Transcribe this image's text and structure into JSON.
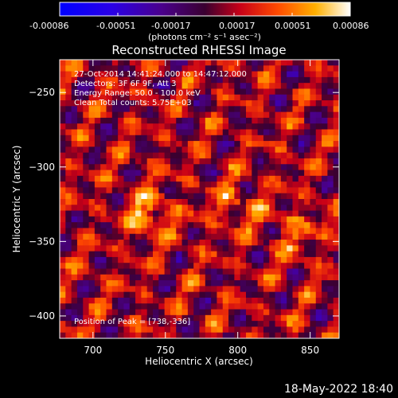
{
  "colorbar": {
    "ticks": [
      "-0.00086",
      "-0.00051",
      "-0.00017",
      "0.00017",
      "0.00051",
      "0.00086"
    ],
    "units": "(photons cm⁻² s⁻¹ asec⁻²)"
  },
  "chart_data": {
    "type": "heatmap",
    "title": "Reconstructed RHESSI Image",
    "xlabel": "Heliocentric X (arcsec)",
    "ylabel": "Heliocentric Y (arcsec)",
    "xlim": [
      677,
      870
    ],
    "ylim": [
      -415,
      -228
    ],
    "xticks": [
      700,
      750,
      800,
      850
    ],
    "yticks": [
      -250,
      -300,
      -350,
      -400
    ],
    "color_range": [
      -0.00086,
      0.00086
    ],
    "colormap": "blue-purple-red-yellow-white",
    "peak": [
      738,
      -336
    ],
    "bright_regions": [
      {
        "x": 799,
        "y": -325
      },
      {
        "x": 740,
        "y": -327
      },
      {
        "x": 840,
        "y": -345
      }
    ],
    "annotations": [
      "27-Oct-2014 14:41:24.000 to 14:47:12.000",
      "Detectors: 3F 6F 9F, Att 3",
      "Energy Range: 50.0 - 100.0 keV",
      "Clean     Total counts: 5.75E+03"
    ],
    "peak_label": "Position of Peak = [738,-336]"
  },
  "footer": {
    "date": "18-May-2022 18:40"
  }
}
